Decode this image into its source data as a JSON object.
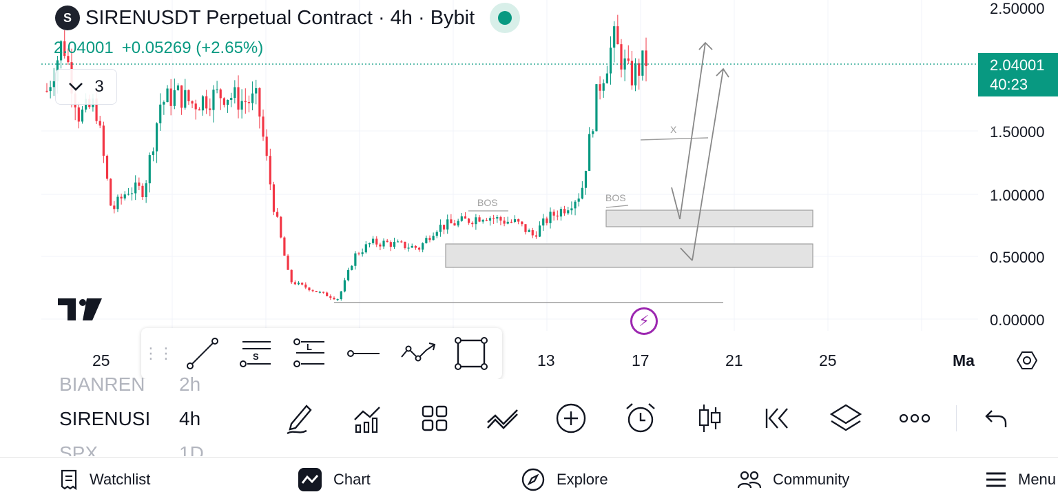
{
  "header": {
    "logo_glyph": "S",
    "title": "SIRENUSDT Perpetual Contract · 4h · Bybit",
    "price": "2.04001",
    "change": "+0.05269 (+2.65%)",
    "indicators_count": "3"
  },
  "colors": {
    "up": "#089981",
    "down": "#f23645",
    "accent": "#9c27b0"
  },
  "price_axis": {
    "labels": [
      "2.50000",
      "1.50000",
      "1.00000",
      "0.50000",
      "0.00000"
    ],
    "current_price": "2.04001",
    "countdown": "40:23"
  },
  "time_axis": {
    "labels": [
      "25",
      "13",
      "17",
      "21",
      "25",
      "Ma"
    ]
  },
  "drawings": {
    "bos_labels": [
      "BOS",
      "BOS"
    ],
    "x_marker": "X"
  },
  "chart_data": {
    "type": "candlestick",
    "title": "SIRENUSDT Perpetual Contract · 4h · Bybit",
    "y_ticks": [
      0.0,
      0.5,
      1.0,
      1.5,
      2.5
    ],
    "ylim": [
      0.0,
      2.5
    ],
    "last_price": 2.04001,
    "x_ticks": [
      "25",
      "13",
      "17",
      "21",
      "25",
      "Ma"
    ],
    "close_path": [
      1.8,
      2.2,
      1.6,
      1.7,
      0.85,
      1.02,
      1.02,
      1.7,
      1.78,
      1.7,
      1.75,
      1.78,
      1.72,
      1.72,
      0.9,
      0.3,
      0.25,
      0.2,
      0.16,
      0.5,
      0.6,
      0.6,
      0.58,
      0.56,
      0.72,
      0.75,
      0.78,
      0.82,
      0.78,
      0.76,
      0.66,
      0.8,
      0.88,
      1.0,
      1.8,
      2.2,
      1.9,
      2.04
    ],
    "zones": [
      {
        "low": 0.74,
        "high": 0.88
      },
      {
        "low": 0.42,
        "high": 0.61
      }
    ]
  },
  "drawing_toolbar": {
    "tools": [
      "trend-line",
      "fib-retracement",
      "long-position",
      "horizontal-ray",
      "path",
      "rectangle"
    ]
  },
  "watchlist": [
    {
      "symbol": "BIANREN",
      "tf": "2h"
    },
    {
      "symbol": "SIRENUSI",
      "tf": "4h"
    },
    {
      "symbol": "SPX",
      "tf": "1D"
    }
  ],
  "bottom_toolbar": {
    "tools": [
      "draw",
      "indicators",
      "templates",
      "compare",
      "add",
      "alert",
      "chart-type",
      "replay",
      "layers",
      "more",
      "undo"
    ]
  },
  "nav": {
    "watchlist": "Watchlist",
    "chart": "Chart",
    "explore": "Explore",
    "community": "Community",
    "menu": "Menu"
  }
}
